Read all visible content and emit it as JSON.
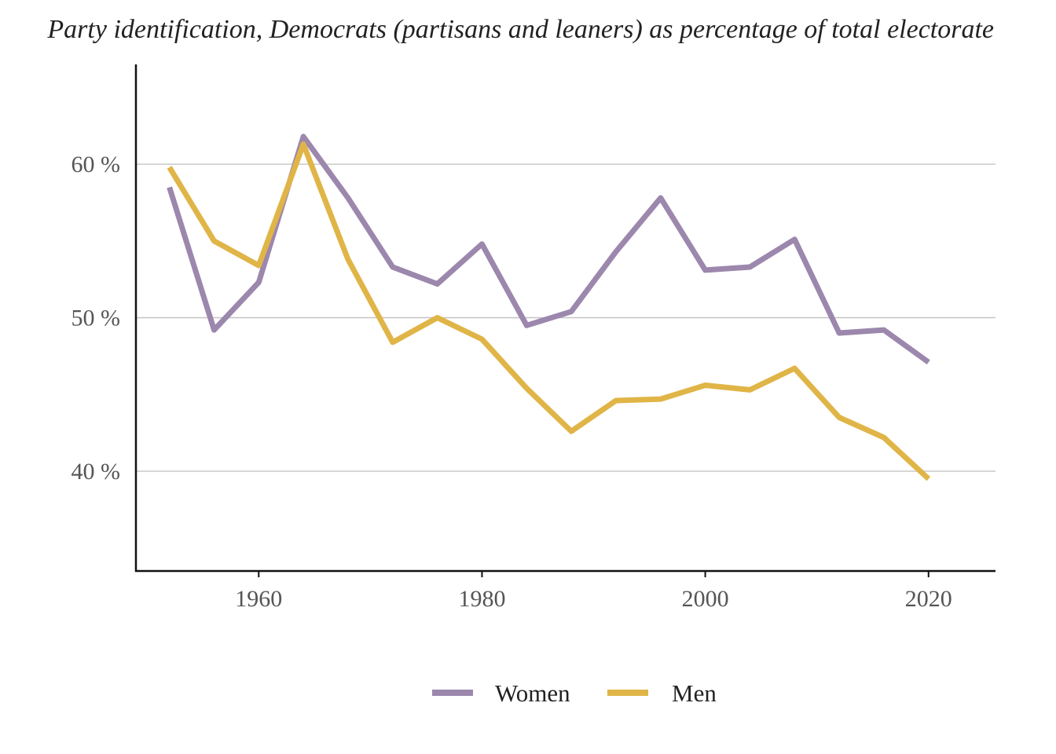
{
  "chart_data": {
    "type": "line",
    "title": "Party identification, Democrats (partisans and leaners) as percentage of total electorate",
    "xlabel": "",
    "ylabel": "",
    "xlim": [
      1949,
      2026
    ],
    "ylim": [
      33.5,
      66.5
    ],
    "x_ticks": [
      1960,
      1980,
      2000,
      2020
    ],
    "x_tick_labels": [
      "1960",
      "1980",
      "2000",
      "2020"
    ],
    "y_ticks": [
      40,
      50,
      60
    ],
    "y_tick_labels": [
      "40 %",
      "50 %",
      "60 %"
    ],
    "grid": {
      "horizontal_major": true,
      "vertical": false
    },
    "legend_position": "bottom",
    "x": [
      1952,
      1956,
      1960,
      1964,
      1968,
      1972,
      1976,
      1980,
      1984,
      1988,
      1992,
      1996,
      2000,
      2004,
      2008,
      2012,
      2016,
      2020
    ],
    "series": [
      {
        "name": "Women",
        "color": "#9c87ad",
        "values": [
          58.5,
          49.2,
          52.3,
          61.8,
          57.8,
          53.3,
          52.2,
          54.8,
          49.5,
          50.4,
          54.3,
          57.8,
          53.1,
          53.3,
          55.1,
          49.0,
          49.2,
          47.1
        ]
      },
      {
        "name": "Men",
        "color": "#e0b547",
        "values": [
          59.8,
          55.0,
          53.4,
          61.3,
          53.8,
          48.4,
          50.0,
          48.6,
          45.4,
          42.6,
          44.6,
          44.7,
          45.6,
          45.3,
          46.7,
          43.5,
          42.2,
          39.5
        ]
      }
    ]
  }
}
